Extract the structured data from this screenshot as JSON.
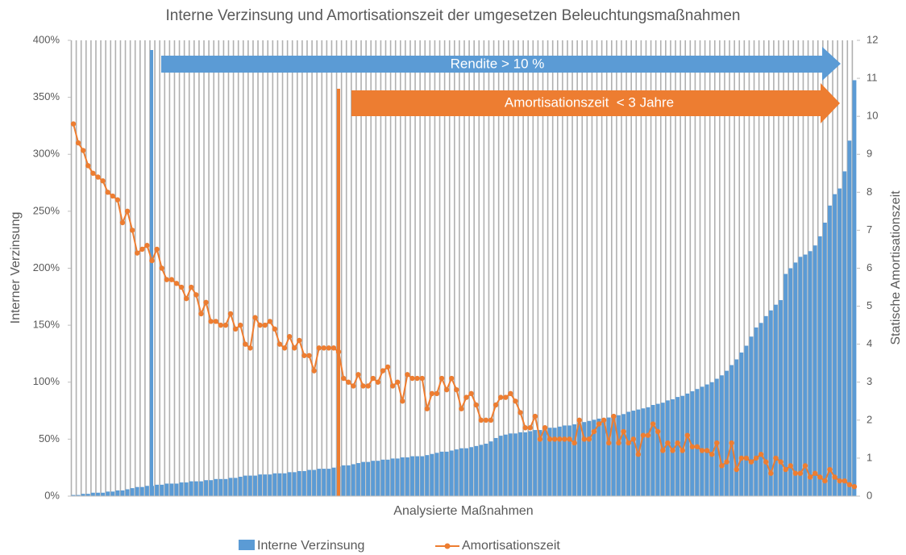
{
  "chart_data": {
    "type": "bar",
    "title": "Interne Verzinsung und Amortisationszeit der umgesetzen Beleuchtungsmaßnahmen",
    "xlabel": "Analysierte Maßnahmen",
    "ylabel": "Interner Verzinsung",
    "y2label": "Statische Amortisationszeit",
    "annotations": [
      "Rendite > 10 %",
      "Amortisationszeit  < 3 Jahre"
    ],
    "categories": [
      null,
      null,
      null,
      null,
      null,
      null,
      null,
      null,
      null,
      null,
      null,
      null,
      null,
      null,
      null,
      null,
      null,
      null,
      null,
      null,
      null,
      null,
      null,
      null,
      null,
      null,
      null,
      null,
      null,
      null,
      null,
      null,
      null,
      null,
      null,
      null,
      null,
      null,
      null,
      null,
      null,
      null,
      null,
      null,
      null,
      null,
      null,
      null,
      null,
      null,
      null,
      null,
      null,
      null,
      null,
      null,
      null,
      null,
      null,
      null,
      null,
      null,
      null,
      null,
      null,
      null,
      null,
      null,
      null,
      null,
      null,
      null,
      null,
      null,
      null,
      null,
      null,
      null,
      null,
      null,
      null,
      null,
      null,
      null,
      null,
      null,
      null,
      null,
      null,
      null,
      null,
      null,
      null,
      null,
      null,
      null,
      null,
      null,
      null,
      null,
      null,
      null,
      null,
      null,
      null,
      null,
      null,
      null,
      null,
      null,
      null,
      null,
      null,
      null,
      null,
      null,
      null,
      null,
      null,
      null,
      null,
      null,
      null,
      null,
      null,
      null,
      null,
      null,
      null,
      null,
      null,
      null,
      null,
      null,
      null,
      null,
      null,
      null,
      null,
      null,
      null,
      null,
      null,
      null,
      null,
      null,
      null,
      null,
      null,
      null,
      null,
      null,
      null,
      null,
      null,
      null,
      null,
      null,
      null,
      null
    ],
    "series": [
      {
        "name": "Interne Verzinsung",
        "type": "bar",
        "color": "#5b9bd5",
        "values": [
          1,
          1,
          2,
          2,
          3,
          3,
          3,
          4,
          4,
          5,
          5,
          6,
          7,
          8,
          8,
          9,
          9,
          10,
          10,
          11,
          11,
          11,
          12,
          12,
          13,
          13,
          13,
          14,
          14,
          15,
          15,
          15,
          16,
          16,
          17,
          18,
          18,
          18,
          19,
          19,
          19,
          20,
          20,
          20,
          21,
          21,
          22,
          22,
          23,
          23,
          24,
          24,
          24,
          25,
          26,
          27,
          27,
          28,
          29,
          30,
          30,
          31,
          31,
          32,
          32,
          33,
          33,
          34,
          34,
          35,
          35,
          35,
          36,
          37,
          38,
          39,
          39,
          40,
          41,
          42,
          42,
          43,
          44,
          45,
          46,
          48,
          51,
          53,
          54,
          55,
          55,
          56,
          56,
          57,
          58,
          58,
          59,
          60,
          60,
          61,
          62,
          62,
          63,
          64,
          65,
          66,
          67,
          68,
          68,
          69,
          70,
          71,
          72,
          74,
          75,
          76,
          77,
          78,
          80,
          81,
          82,
          84,
          85,
          87,
          88,
          90,
          92,
          94,
          96,
          98,
          100,
          103,
          106,
          110,
          115,
          120,
          126,
          132,
          140,
          148,
          152,
          158,
          163,
          168,
          172,
          195,
          200,
          205,
          210,
          212,
          215,
          220,
          228,
          240,
          255,
          265,
          270,
          285,
          312,
          365
        ]
      },
      {
        "name": "Amortisationszeit",
        "type": "line",
        "axis": "y2",
        "color": "#ed7d31",
        "values": [
          9.8,
          9.3,
          9.1,
          8.7,
          8.5,
          8.4,
          8.3,
          8.0,
          7.9,
          7.8,
          7.2,
          7.5,
          7.0,
          6.4,
          6.5,
          6.6,
          6.2,
          6.5,
          6.0,
          5.7,
          5.7,
          5.6,
          5.5,
          5.2,
          5.5,
          5.3,
          4.8,
          5.1,
          4.6,
          4.6,
          4.5,
          4.5,
          4.8,
          4.4,
          4.5,
          4.0,
          3.9,
          4.7,
          4.5,
          4.5,
          4.6,
          4.4,
          4.0,
          3.9,
          4.2,
          3.9,
          4.1,
          3.7,
          3.7,
          3.3,
          3.9,
          3.9,
          3.9,
          3.9,
          3.8,
          3.1,
          3.0,
          2.9,
          3.2,
          2.9,
          2.9,
          3.1,
          3.0,
          3.3,
          3.4,
          2.9,
          3.0,
          2.5,
          3.2,
          3.1,
          3.1,
          3.1,
          2.3,
          2.7,
          2.7,
          3.1,
          2.8,
          3.1,
          2.8,
          2.3,
          2.6,
          2.7,
          2.4,
          2.0,
          2.0,
          2.0,
          2.4,
          2.6,
          2.6,
          2.7,
          2.5,
          2.2,
          1.8,
          1.8,
          2.1,
          1.5,
          1.8,
          1.5,
          1.5,
          1.5,
          1.5,
          1.5,
          1.4,
          2.0,
          1.5,
          1.5,
          1.7,
          1.9,
          2.0,
          1.4,
          2.1,
          1.4,
          1.7,
          1.4,
          1.5,
          1.1,
          1.6,
          1.6,
          1.9,
          1.7,
          1.2,
          1.4,
          1.2,
          1.4,
          1.2,
          1.6,
          1.3,
          1.3,
          1.2,
          1.2,
          1.1,
          1.4,
          0.8,
          0.9,
          1.4,
          0.7,
          1.0,
          1.0,
          0.9,
          1.0,
          1.1,
          0.9,
          0.6,
          1.0,
          0.9,
          0.7,
          0.8,
          0.6,
          0.6,
          0.8,
          0.5,
          0.6,
          0.5,
          0.4,
          0.7,
          0.5,
          0.4,
          0.4,
          0.3,
          0.25
        ]
      }
    ],
    "ylim": [
      0,
      400
    ],
    "yticks": [
      {
        "value": 0,
        "label": "0%"
      },
      {
        "value": 50,
        "label": "50%"
      },
      {
        "value": 100,
        "label": "100%"
      },
      {
        "value": 150,
        "label": "150%"
      },
      {
        "value": 200,
        "label": "200%"
      },
      {
        "value": 250,
        "label": "250%"
      },
      {
        "value": 300,
        "label": "300%"
      },
      {
        "value": 350,
        "label": "350%"
      },
      {
        "value": 400,
        "label": "400%"
      }
    ],
    "y2lim": [
      0,
      12
    ],
    "y2ticks": [
      0,
      1,
      2,
      3,
      4,
      5,
      6,
      7,
      8,
      9,
      10,
      11,
      12
    ],
    "legend": "bottom"
  }
}
